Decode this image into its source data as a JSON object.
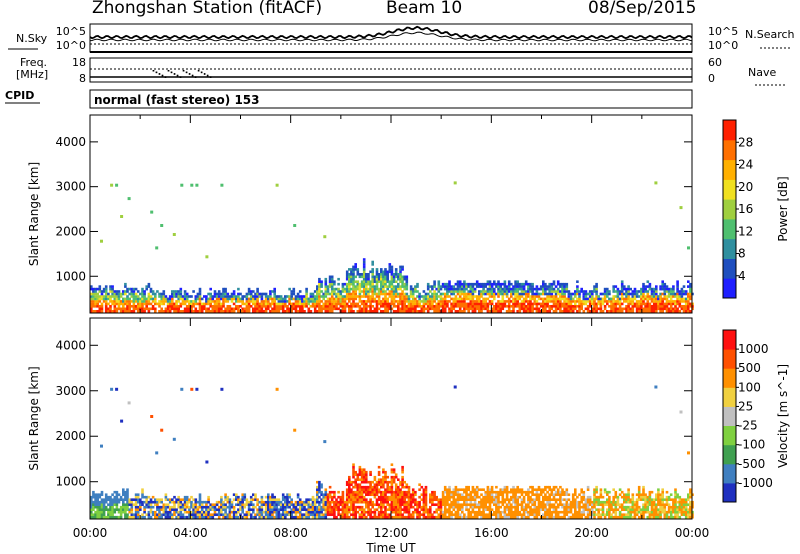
{
  "header": {
    "station": "Zhongshan Station (fitACF)",
    "beam": "Beam 10",
    "date": "08/Sep/2015"
  },
  "noise_panel": {
    "left_label": "N.Sky",
    "right_label": "N.Search",
    "left_ticks": [
      "10^5",
      "10^0"
    ],
    "right_ticks": [
      "10^5",
      "10^0"
    ]
  },
  "freq_panel": {
    "left_label_1": "Freq.",
    "left_label_2": "[MHz]",
    "left_ticks": [
      "18",
      "8"
    ],
    "right_ticks": [
      "60",
      "0"
    ],
    "right_label": "Nave"
  },
  "cpid": {
    "label": "CPID",
    "text": "normal (fast stereo) 153"
  },
  "chart_data": [
    {
      "type": "heatmap",
      "name": "power",
      "ylabel": "Slant Range [km]",
      "yticks": [
        1000,
        2000,
        3000,
        4000
      ],
      "ylim": [
        180,
        4600
      ],
      "xlim": [
        0,
        24
      ],
      "colorbar_label": "Power [dB]",
      "colorbar_ticks": [
        "28",
        "24",
        "20",
        "16",
        "12",
        "8",
        "4"
      ],
      "colors": [
        "#1f1fff",
        "#1f4fbf",
        "#2f8f9f",
        "#4fbf6f",
        "#9fcf3f",
        "#f0e020",
        "#ffb000",
        "#ff7000",
        "#ff2000"
      ]
    },
    {
      "type": "heatmap",
      "name": "velocity",
      "ylabel": "Slant Range [km]",
      "yticks": [
        1000,
        2000,
        3000,
        4000
      ],
      "ylim": [
        180,
        4600
      ],
      "xlim": [
        0,
        24
      ],
      "xticks": [
        "00:00",
        "04:00",
        "08:00",
        "12:00",
        "16:00",
        "20:00",
        "00:00"
      ],
      "xlabel": "Time UT",
      "colorbar_label": "Velocity [m s^-1]",
      "colorbar_ticks": [
        "1000",
        "500",
        "100",
        "25",
        "-25",
        "-100",
        "-500",
        "-1000"
      ],
      "colors": [
        "#1f30c0",
        "#3f7fc0",
        "#3fa050",
        "#7fd040",
        "#c0c0c0",
        "#f0d040",
        "#ff9000",
        "#ff5000",
        "#ff1010"
      ]
    }
  ]
}
